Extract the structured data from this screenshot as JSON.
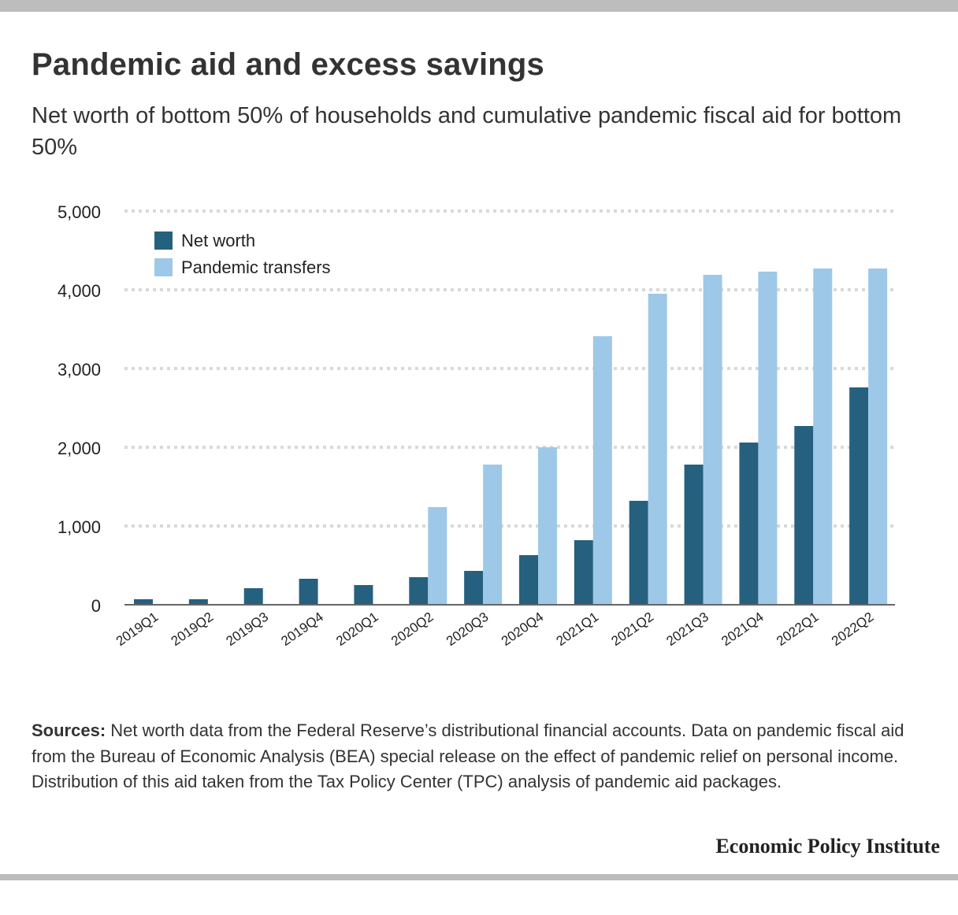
{
  "title": "Pandemic aid and excess savings",
  "subtitle": "Net worth of bottom 50% of households and cumulative pandemic fiscal aid for bottom 50%",
  "sources": {
    "label": "Sources:",
    "text": "Net worth data from the Federal Reserve’s distributional financial accounts. Data on pandemic fiscal aid from the Bureau of Economic Analysis (BEA) special release on the effect of pandemic relief on personal income. Distribution of this aid taken from the Tax Policy Center (TPC) analysis of pandemic aid packages."
  },
  "brand": "Economic Policy Institute",
  "chart_data": {
    "type": "bar",
    "categories": [
      "2019Q1",
      "2019Q2",
      "2019Q3",
      "2019Q4",
      "2020Q1",
      "2020Q2",
      "2020Q3",
      "2020Q4",
      "2021Q1",
      "2021Q2",
      "2021Q3",
      "2021Q4",
      "2022Q1",
      "2022Q2"
    ],
    "series": [
      {
        "name": "Net worth",
        "color": "#25607f",
        "values": [
          70,
          70,
          210,
          330,
          250,
          350,
          430,
          630,
          820,
          1320,
          1780,
          2060,
          2270,
          2760
        ]
      },
      {
        "name": "Pandemic transfers",
        "color": "#9ec8e8",
        "values": [
          0,
          0,
          0,
          0,
          0,
          1240,
          1780,
          2000,
          3410,
          3950,
          4190,
          4230,
          4270,
          4270
        ]
      }
    ],
    "ylim": [
      0,
      5000
    ],
    "yticks": [
      0,
      1000,
      2000,
      3000,
      4000,
      5000
    ],
    "ytick_labels": [
      "0",
      "1,000",
      "2,000",
      "3,000",
      "4,000",
      "5,000"
    ],
    "xlabel": "",
    "ylabel": "",
    "grid": true,
    "legend_position": "top-left"
  }
}
